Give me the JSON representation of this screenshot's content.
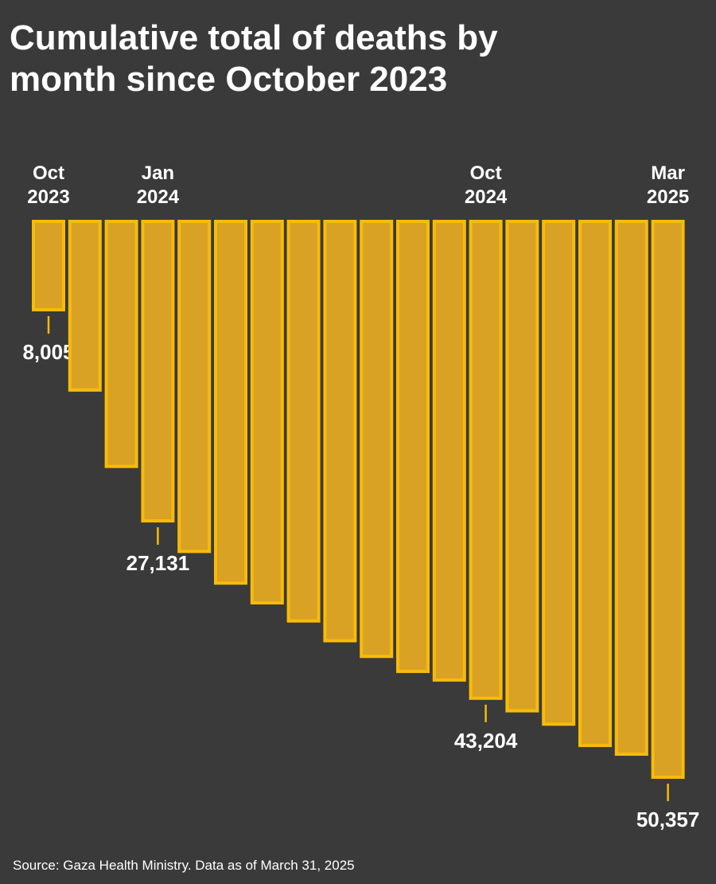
{
  "chart_data": {
    "type": "bar",
    "title": "Cumulative total of deaths by month since October 2023",
    "source": "Source:  Gaza Health Ministry. Data as of March 31, 2025",
    "categories": [
      "Oct 2023",
      null,
      null,
      "Jan 2024",
      null,
      null,
      null,
      null,
      null,
      null,
      null,
      null,
      "Oct 2024",
      null,
      null,
      null,
      null,
      "Mar 2025"
    ],
    "values": [
      8005,
      15280,
      22200,
      27131,
      29900,
      32770,
      34560,
      36200,
      37990,
      39410,
      40770,
      41550,
      43204,
      44340,
      45550,
      47480,
      48270,
      50357
    ],
    "value_labels": [
      "8,005",
      null,
      null,
      "27,131",
      null,
      null,
      null,
      null,
      null,
      null,
      null,
      null,
      "43,204",
      null,
      null,
      null,
      null,
      "50,357"
    ],
    "color": "#f7bb0a",
    "ylim": [
      0,
      50000
    ]
  }
}
